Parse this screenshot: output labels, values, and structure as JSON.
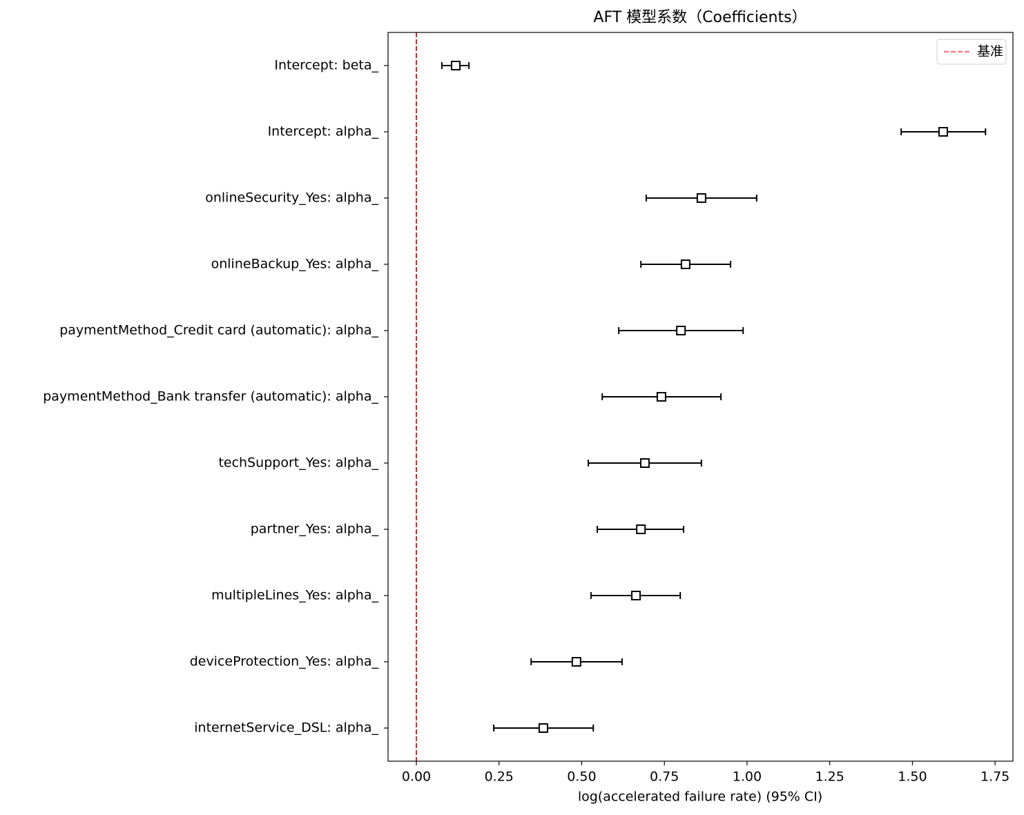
{
  "chart_data": {
    "type": "forest",
    "title": "AFT 模型系数（Coefficients）",
    "x_label": "log(accelerated failure rate) (95% CI)",
    "categories": [
      "Intercept: beta_",
      "Intercept: alpha_",
      "onlineSecurity_Yes: alpha_",
      "onlineBackup_Yes: alpha_",
      "paymentMethod_Credit card (automatic): alpha_",
      "paymentMethod_Bank transfer (automatic): alpha_",
      "techSupport_Yes: alpha_",
      "partner_Yes: alpha_",
      "multipleLines_Yes: alpha_",
      "deviceProtection_Yes: alpha_",
      "internetService_DSL: alpha_"
    ],
    "values": [
      0.119,
      1.593,
      0.862,
      0.814,
      0.8,
      0.741,
      0.691,
      0.679,
      0.664,
      0.484,
      0.384
    ],
    "lower": [
      0.077,
      1.466,
      0.695,
      0.679,
      0.612,
      0.562,
      0.52,
      0.547,
      0.528,
      0.347,
      0.234
    ],
    "upper": [
      0.159,
      1.721,
      1.029,
      0.95,
      0.988,
      0.921,
      0.862,
      0.808,
      0.798,
      0.622,
      0.535
    ],
    "color": "#000000",
    "reference_line": {
      "value": 0,
      "label": "基准",
      "color": "#f08080"
    },
    "legend": "upper right",
    "xlim": [
      -0.0856,
      1.804
    ],
    "xticks": [
      {
        "value": 0,
        "label": "0.00"
      },
      {
        "value": 0.25,
        "label": "0.25"
      },
      {
        "value": 0.5,
        "label": "0.50"
      },
      {
        "value": 0.75,
        "label": "0.75"
      },
      {
        "value": 1,
        "label": "1.00"
      },
      {
        "value": 1.25,
        "label": "1.25"
      },
      {
        "value": 1.5,
        "label": "1.50"
      },
      {
        "value": 1.75,
        "label": "1.75"
      }
    ]
  }
}
